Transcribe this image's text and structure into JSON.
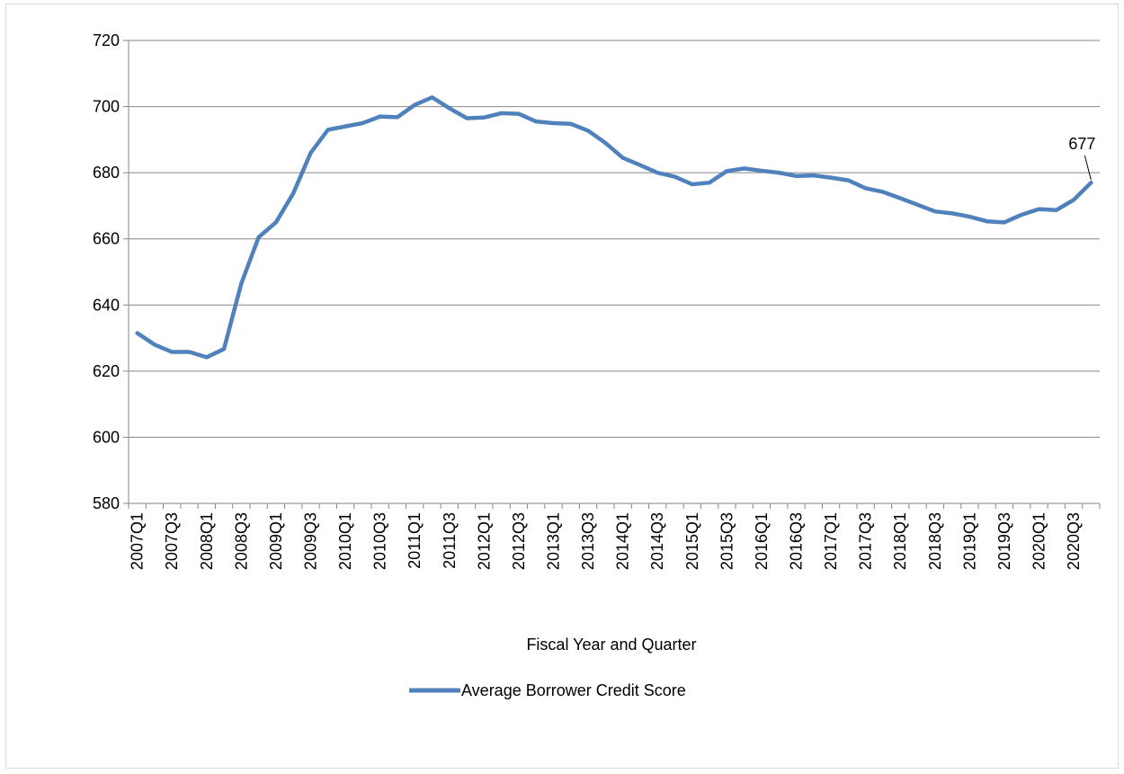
{
  "chart_data": {
    "type": "line",
    "title": "",
    "xlabel": "Fiscal Year and Quarter",
    "ylabel": "",
    "ylim": [
      580,
      720
    ],
    "yticks": [
      580,
      600,
      620,
      640,
      660,
      680,
      700,
      720
    ],
    "grid": true,
    "legend_position": "bottom",
    "categories": [
      "2007Q1",
      "2007Q2",
      "2007Q3",
      "2007Q4",
      "2008Q1",
      "2008Q2",
      "2008Q3",
      "2008Q4",
      "2009Q1",
      "2009Q2",
      "2009Q3",
      "2009Q4",
      "2010Q1",
      "2010Q2",
      "2010Q3",
      "2010Q4",
      "2011Q1",
      "2011Q2",
      "2011Q3",
      "2011Q4",
      "2012Q1",
      "2012Q2",
      "2012Q3",
      "2012Q4",
      "2013Q1",
      "2013Q2",
      "2013Q3",
      "2013Q4",
      "2014Q1",
      "2014Q2",
      "2014Q3",
      "2014Q4",
      "2015Q1",
      "2015Q2",
      "2015Q3",
      "2015Q4",
      "2016Q1",
      "2016Q2",
      "2016Q3",
      "2016Q4",
      "2017Q1",
      "2017Q2",
      "2017Q3",
      "2017Q4",
      "2018Q1",
      "2018Q2",
      "2018Q3",
      "2018Q4",
      "2019Q1",
      "2019Q2",
      "2019Q3",
      "2019Q4",
      "2020Q1",
      "2020Q2",
      "2020Q3",
      "2020Q4"
    ],
    "tick_labels": [
      "2007Q1",
      "2007Q3",
      "2008Q1",
      "2008Q3",
      "2009Q1",
      "2009Q3",
      "2010Q1",
      "2010Q3",
      "2011Q1",
      "2011Q3",
      "2012Q1",
      "2012Q3",
      "2013Q1",
      "2013Q3",
      "2014Q1",
      "2014Q3",
      "2015Q1",
      "2015Q3",
      "2016Q1",
      "2016Q3",
      "2017Q1",
      "2017Q3",
      "2018Q1",
      "2018Q3",
      "2019Q1",
      "2019Q3",
      "2020Q1",
      "2020Q3"
    ],
    "series": [
      {
        "name": "Average Borrower Credit Score",
        "color": "#4f81bd",
        "values": [
          631.5,
          628,
          625.8,
          625.8,
          624.2,
          626.7,
          646.5,
          660.5,
          665,
          673.8,
          686,
          693,
          694,
          695,
          697,
          696.8,
          700.5,
          702.8,
          699.5,
          696.5,
          696.7,
          698,
          697.8,
          695.5,
          695,
          694.8,
          692.7,
          689,
          684.5,
          682.3,
          680,
          678.8,
          676.5,
          677,
          680.5,
          681.3,
          680.6,
          680,
          679,
          679.2,
          678.5,
          677.7,
          675.3,
          674.2,
          672.3,
          670.3,
          668.3,
          667.7,
          666.7,
          665.3,
          665,
          667.3,
          669,
          668.7,
          671.8,
          677
        ]
      }
    ],
    "annotations": [
      {
        "text": "677",
        "category": "2020Q4",
        "value": 677
      }
    ]
  }
}
